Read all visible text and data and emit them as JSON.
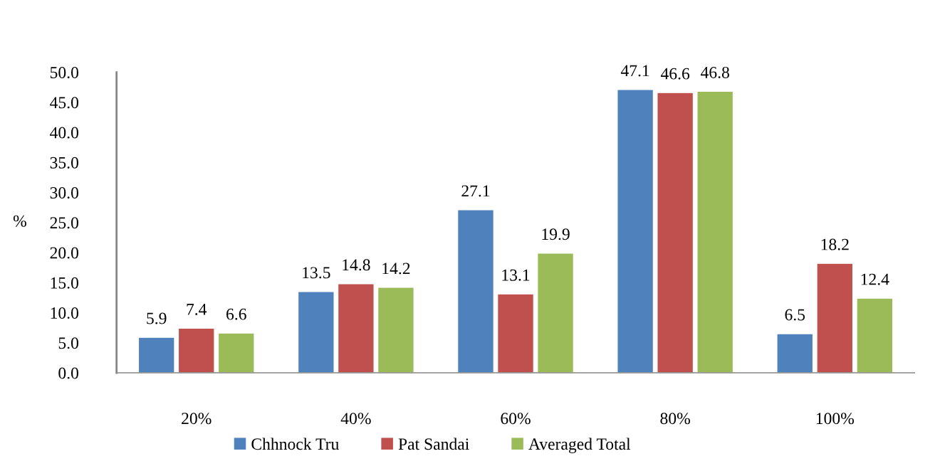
{
  "chart_data": {
    "type": "bar",
    "ylabel": "%",
    "categories": [
      "20%",
      "40%",
      "60%",
      "80%",
      "100%"
    ],
    "series": [
      {
        "name": "Chhnock Tru",
        "color": "#4f81bd",
        "values": [
          5.9,
          13.5,
          27.1,
          47.1,
          6.5
        ]
      },
      {
        "name": "Pat Sandai",
        "color": "#c0504d",
        "values": [
          7.4,
          14.8,
          13.1,
          46.6,
          18.2
        ]
      },
      {
        "name": "Averaged Total",
        "color": "#9bbb59",
        "values": [
          6.6,
          14.2,
          19.9,
          46.8,
          12.4
        ]
      }
    ],
    "ylim": [
      0,
      50
    ],
    "yticks": [
      {
        "value": 0,
        "label": "0.0"
      },
      {
        "value": 5,
        "label": "5.0"
      },
      {
        "value": 10,
        "label": "10.0"
      },
      {
        "value": 15,
        "label": "15.0"
      },
      {
        "value": 20,
        "label": "20.0"
      },
      {
        "value": 25,
        "label": "25.0"
      },
      {
        "value": 30,
        "label": "30.0"
      },
      {
        "value": 35,
        "label": "35.0"
      },
      {
        "value": 40,
        "label": "40.0"
      },
      {
        "value": 45,
        "label": "45.0"
      },
      {
        "value": 50,
        "label": "50.0"
      }
    ],
    "data_labels": true,
    "legend": "bottom"
  }
}
